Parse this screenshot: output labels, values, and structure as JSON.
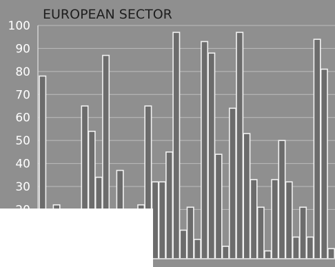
{
  "chart_data": {
    "type": "bar",
    "title": "EUROPEAN SECTOR",
    "xlabel": "",
    "ylabel": "",
    "ylim": [
      0,
      100
    ],
    "yticks": [
      "100",
      "90",
      "80",
      "70",
      "60",
      "50",
      "40",
      "30",
      "20"
    ],
    "grid": true,
    "legend": "none",
    "values": [
      78,
      0,
      22,
      0,
      0,
      0,
      65,
      54,
      34,
      87,
      0,
      37,
      0,
      0,
      22,
      65,
      32,
      32,
      45,
      97,
      11,
      21,
      7,
      93,
      88,
      44,
      4,
      64,
      97,
      53,
      33,
      21,
      2,
      33,
      50,
      32,
      8,
      21,
      8,
      94,
      81,
      3
    ],
    "colors": {
      "bar": "#6c6c6c",
      "background": "#8f8f8f",
      "grid": "#bdbdbd",
      "bar_outline": "#f2f2f2"
    }
  }
}
